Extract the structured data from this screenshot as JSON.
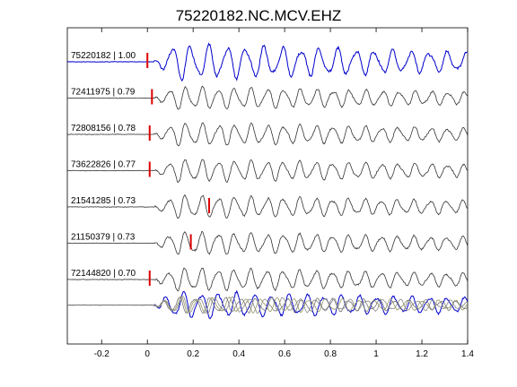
{
  "chart_data": {
    "type": "line",
    "title": "75220182.NC.MCV.EHZ",
    "xlabel": "",
    "ylabel": "",
    "xlim": [
      -0.35,
      1.4
    ],
    "x_ticks": [
      "-0.2",
      "0",
      "0.2",
      "0.4",
      "0.6",
      "0.8",
      "1",
      "1.2",
      "1.4"
    ],
    "x_tick_values": [
      -0.2,
      0,
      0.2,
      0.4,
      0.6,
      0.8,
      1.0,
      1.2,
      1.4
    ],
    "grid": false,
    "series": [
      {
        "name": "75220182 | 1.00",
        "color": "#0000cc",
        "pick_time": 0.0
      },
      {
        "name": "72411975 | 0.79",
        "color": "#333333",
        "pick_time": 0.02
      },
      {
        "name": "72808156 | 0.78",
        "color": "#333333",
        "pick_time": 0.01
      },
      {
        "name": "73622826 | 0.77",
        "color": "#333333",
        "pick_time": 0.01
      },
      {
        "name": "21541285 | 0.73",
        "color": "#333333",
        "pick_time": 0.27
      },
      {
        "name": "21150379 | 0.73",
        "color": "#333333",
        "pick_time": 0.19
      },
      {
        "name": "72144820 | 0.70",
        "color": "#333333",
        "pick_time": 0.01
      }
    ],
    "stack": {
      "colors": [
        "#0000cc",
        "#888888",
        "#999966",
        "#777777"
      ]
    },
    "pick_color": "#dd0000"
  }
}
